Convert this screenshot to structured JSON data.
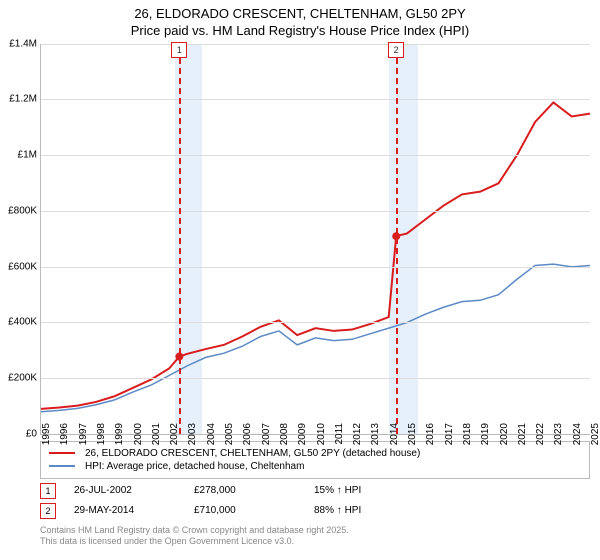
{
  "title_line1": "26, ELDORADO CRESCENT, CHELTENHAM, GL50 2PY",
  "title_line2": "Price paid vs. HM Land Registry's House Price Index (HPI)",
  "chart": {
    "type": "line",
    "xmin": 1995,
    "xmax": 2025,
    "ymin": 0,
    "ymax": 1400000,
    "ytick_step": 200000,
    "ytick_labels": [
      "£0",
      "£200K",
      "£400K",
      "£600K",
      "£800K",
      "£1M",
      "£1.2M",
      "£1.4M"
    ],
    "xtick_step": 1,
    "background": "#ffffff",
    "grid_color": "#dddddd",
    "shade_color": "#e6f0fa",
    "shade_ranges": [
      [
        2002.3,
        2003.8
      ],
      [
        2014.0,
        2015.6
      ]
    ],
    "series": [
      {
        "name": "property",
        "color": "#d91c1c",
        "width": 2,
        "points": [
          [
            1995,
            90000
          ],
          [
            1996,
            95000
          ],
          [
            1997,
            102000
          ],
          [
            1998,
            115000
          ],
          [
            1999,
            135000
          ],
          [
            2000,
            165000
          ],
          [
            2001,
            195000
          ],
          [
            2002,
            235000
          ],
          [
            2002.56,
            278000
          ],
          [
            2003,
            288000
          ],
          [
            2004,
            305000
          ],
          [
            2005,
            320000
          ],
          [
            2006,
            350000
          ],
          [
            2007,
            385000
          ],
          [
            2008,
            408000
          ],
          [
            2009,
            355000
          ],
          [
            2010,
            380000
          ],
          [
            2011,
            370000
          ],
          [
            2012,
            375000
          ],
          [
            2013,
            395000
          ],
          [
            2014,
            420000
          ],
          [
            2014.41,
            710000
          ],
          [
            2015,
            720000
          ],
          [
            2016,
            770000
          ],
          [
            2017,
            820000
          ],
          [
            2018,
            860000
          ],
          [
            2019,
            870000
          ],
          [
            2020,
            900000
          ],
          [
            2021,
            1000000
          ],
          [
            2022,
            1120000
          ],
          [
            2023,
            1190000
          ],
          [
            2024,
            1140000
          ],
          [
            2025,
            1150000
          ]
        ]
      },
      {
        "name": "hpi",
        "color": "#5b8ac6",
        "width": 1.5,
        "points": [
          [
            1995,
            80000
          ],
          [
            1996,
            85000
          ],
          [
            1997,
            92000
          ],
          [
            1998,
            105000
          ],
          [
            1999,
            122000
          ],
          [
            2000,
            150000
          ],
          [
            2001,
            175000
          ],
          [
            2002,
            210000
          ],
          [
            2003,
            245000
          ],
          [
            2004,
            275000
          ],
          [
            2005,
            290000
          ],
          [
            2006,
            315000
          ],
          [
            2007,
            350000
          ],
          [
            2008,
            370000
          ],
          [
            2009,
            320000
          ],
          [
            2010,
            345000
          ],
          [
            2011,
            335000
          ],
          [
            2012,
            340000
          ],
          [
            2013,
            360000
          ],
          [
            2014,
            380000
          ],
          [
            2015,
            400000
          ],
          [
            2016,
            430000
          ],
          [
            2017,
            455000
          ],
          [
            2018,
            475000
          ],
          [
            2019,
            480000
          ],
          [
            2020,
            500000
          ],
          [
            2021,
            555000
          ],
          [
            2022,
            605000
          ],
          [
            2023,
            610000
          ],
          [
            2024,
            600000
          ],
          [
            2025,
            605000
          ]
        ]
      }
    ],
    "sale_markers": [
      {
        "num": "1",
        "x": 2002.56,
        "y": 278000,
        "color": "#d91c1c"
      },
      {
        "num": "2",
        "x": 2014.41,
        "y": 710000,
        "color": "#d91c1c"
      }
    ]
  },
  "legend": [
    {
      "color": "#d91c1c",
      "label": "26, ELDORADO CRESCENT, CHELTENHAM, GL50 2PY (detached house)"
    },
    {
      "color": "#5b8ac6",
      "label": "HPI: Average price, detached house, Cheltenham"
    }
  ],
  "transactions": [
    {
      "num": "1",
      "color": "#d91c1c",
      "date": "26-JUL-2002",
      "price": "£278,000",
      "delta": "15% ↑ HPI"
    },
    {
      "num": "2",
      "color": "#d91c1c",
      "date": "29-MAY-2014",
      "price": "£710,000",
      "delta": "88% ↑ HPI"
    }
  ],
  "footer1": "Contains HM Land Registry data © Crown copyright and database right 2025.",
  "footer2": "This data is licensed under the Open Government Licence v3.0."
}
